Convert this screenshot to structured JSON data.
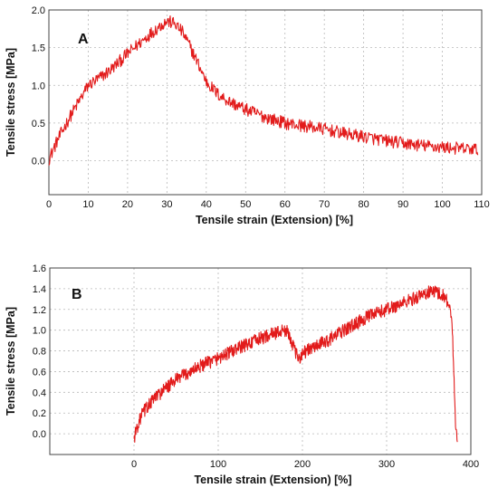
{
  "chart_data": [
    {
      "type": "line",
      "panel_label": "A",
      "xlabel": "Tensile strain (Extension) [%]",
      "ylabel": "Tensile stress [MPa]",
      "xlim": [
        0,
        110
      ],
      "ylim": [
        -0.45,
        2.0
      ],
      "x_ticks": [
        0,
        10,
        20,
        30,
        40,
        50,
        60,
        70,
        80,
        90,
        100,
        110
      ],
      "y_ticks": [
        0.0,
        0.5,
        1.0,
        1.5,
        2.0
      ],
      "y_tick_labels": [
        "0.0",
        "0.5",
        "1.0",
        "1.5",
        "2.0"
      ],
      "grid": true,
      "color": "#e21b1b",
      "series": [
        {
          "x": [
            0,
            2,
            5,
            8,
            10,
            13,
            16,
            20,
            25,
            28,
            30,
            32,
            34,
            36,
            38,
            40,
            43,
            46,
            50,
            55,
            60,
            65,
            70,
            75,
            80,
            85,
            90,
            95,
            100,
            105,
            109
          ],
          "y": [
            0.02,
            0.25,
            0.55,
            0.82,
            1.0,
            1.1,
            1.22,
            1.42,
            1.65,
            1.78,
            1.85,
            1.82,
            1.7,
            1.5,
            1.28,
            1.05,
            0.88,
            0.78,
            0.68,
            0.58,
            0.5,
            0.46,
            0.42,
            0.36,
            0.32,
            0.27,
            0.23,
            0.2,
            0.18,
            0.16,
            0.15
          ]
        }
      ]
    },
    {
      "type": "line",
      "panel_label": "B",
      "xlabel": "Tensile strain (Extension) [%]",
      "ylabel": "Tensile stress [MPa]",
      "xlim": [
        -100,
        400
      ],
      "ylim": [
        -0.2,
        1.6
      ],
      "x_ticks": [
        0,
        100,
        200,
        300,
        400
      ],
      "y_ticks": [
        0.0,
        0.2,
        0.4,
        0.6,
        0.8,
        1.0,
        1.2,
        1.4,
        1.6
      ],
      "y_tick_labels": [
        "0.0",
        "0.2",
        "0.4",
        "0.6",
        "0.8",
        "1.0",
        "1.2",
        "1.4",
        "1.6"
      ],
      "grid": true,
      "color": "#e21b1b",
      "series": [
        {
          "x": [
            0,
            3,
            10,
            25,
            50,
            75,
            100,
            125,
            150,
            170,
            180,
            185,
            190,
            195,
            200,
            210,
            220,
            230,
            250,
            275,
            300,
            325,
            345,
            355,
            362,
            370,
            375,
            378,
            380,
            382,
            384
          ],
          "y": [
            -0.05,
            0.05,
            0.2,
            0.35,
            0.52,
            0.64,
            0.73,
            0.83,
            0.92,
            0.98,
            1.0,
            0.95,
            0.82,
            0.72,
            0.78,
            0.82,
            0.86,
            0.9,
            1.0,
            1.12,
            1.2,
            1.28,
            1.35,
            1.38,
            1.36,
            1.32,
            1.22,
            1.0,
            0.55,
            0.1,
            -0.08
          ]
        }
      ]
    }
  ]
}
